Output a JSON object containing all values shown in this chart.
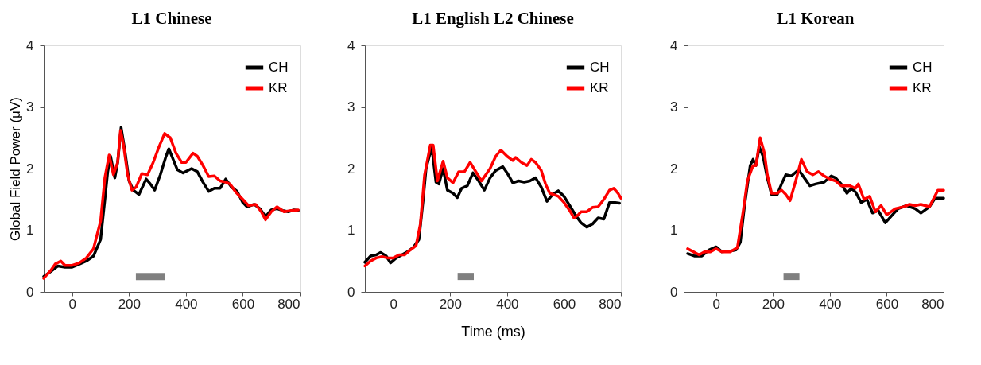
{
  "chart_data": [
    {
      "type": "line",
      "title": "L1 Chinese",
      "ylabel": "Global Field Power (μV)",
      "xlim": [
        -100,
        800
      ],
      "xticks": [
        0,
        200,
        400,
        600,
        800
      ],
      "ylim": [
        0,
        4
      ],
      "yticks": [
        0,
        1,
        2,
        3,
        4
      ],
      "grid": false,
      "legend": "top right",
      "tick_labels": true,
      "series": [
        {
          "type": "line",
          "color": "#808080",
          "x": [
            224,
            327
          ],
          "values": [
            0.25,
            0.25
          ]
        },
        {
          "name": "CH",
          "color": "#000000",
          "x": [
            -100,
            -75,
            -50,
            -25,
            0,
            25,
            50,
            75,
            100,
            115,
            125,
            135,
            150,
            160,
            172,
            185,
            200,
            215,
            235,
            260,
            275,
            290,
            310,
            330,
            340,
            355,
            370,
            390,
            420,
            440,
            460,
            480,
            500,
            520,
            540,
            560,
            580,
            600,
            615,
            640,
            660,
            680,
            700,
            720,
            740,
            760,
            780,
            795
          ],
          "values": [
            0.25,
            0.33,
            0.42,
            0.4,
            0.4,
            0.45,
            0.5,
            0.58,
            0.85,
            1.5,
            1.95,
            2.2,
            1.85,
            2.1,
            2.67,
            2.3,
            1.8,
            1.65,
            1.58,
            1.83,
            1.75,
            1.65,
            1.9,
            2.2,
            2.32,
            2.15,
            1.98,
            1.93,
            2.0,
            1.95,
            1.78,
            1.63,
            1.68,
            1.68,
            1.83,
            1.7,
            1.63,
            1.45,
            1.38,
            1.42,
            1.35,
            1.22,
            1.33,
            1.35,
            1.32,
            1.3,
            1.33,
            1.32
          ]
        },
        {
          "name": "KR",
          "color": "#ff0000",
          "x": [
            -100,
            -75,
            -60,
            -40,
            -25,
            0,
            25,
            50,
            75,
            100,
            115,
            130,
            145,
            160,
            170,
            180,
            195,
            210,
            225,
            245,
            265,
            285,
            305,
            325,
            345,
            365,
            385,
            400,
            425,
            440,
            460,
            480,
            500,
            520,
            540,
            555,
            575,
            600,
            620,
            645,
            665,
            680,
            700,
            720,
            745,
            770,
            795
          ],
          "values": [
            0.22,
            0.35,
            0.45,
            0.5,
            0.43,
            0.43,
            0.47,
            0.55,
            0.7,
            1.15,
            1.85,
            2.22,
            1.9,
            2.1,
            2.62,
            2.4,
            1.9,
            1.65,
            1.7,
            1.92,
            1.9,
            2.1,
            2.35,
            2.57,
            2.5,
            2.25,
            2.1,
            2.1,
            2.25,
            2.2,
            2.05,
            1.87,
            1.88,
            1.8,
            1.78,
            1.75,
            1.62,
            1.5,
            1.4,
            1.42,
            1.3,
            1.17,
            1.3,
            1.38,
            1.3,
            1.32,
            1.33
          ]
        }
      ]
    },
    {
      "type": "line",
      "title": "L1 English L2 Chinese",
      "xlabel": "Time (ms)",
      "xlim": [
        -100,
        800
      ],
      "xticks": [
        0,
        200,
        400,
        600,
        800
      ],
      "ylim": [
        0,
        4
      ],
      "yticks": [
        0,
        1,
        2,
        3,
        4
      ],
      "grid": false,
      "legend": "top right",
      "series": [
        {
          "type": "line",
          "color": "#808080",
          "x": [
            226,
            283
          ],
          "values": [
            0.25,
            0.25
          ]
        },
        {
          "name": "CH",
          "color": "#000000",
          "x": [
            -100,
            -80,
            -60,
            -45,
            -25,
            -10,
            10,
            30,
            50,
            70,
            90,
            105,
            115,
            135,
            150,
            160,
            175,
            190,
            210,
            225,
            240,
            260,
            280,
            300,
            320,
            340,
            360,
            385,
            400,
            420,
            440,
            460,
            480,
            500,
            520,
            540,
            560,
            580,
            600,
            620,
            640,
            660,
            680,
            700,
            720,
            740,
            760,
            780,
            795
          ],
          "values": [
            0.48,
            0.58,
            0.6,
            0.64,
            0.58,
            0.47,
            0.55,
            0.6,
            0.65,
            0.72,
            0.85,
            1.5,
            2.0,
            2.35,
            1.78,
            1.75,
            2.0,
            1.65,
            1.6,
            1.53,
            1.68,
            1.72,
            1.93,
            1.8,
            1.65,
            1.85,
            1.97,
            2.03,
            1.93,
            1.77,
            1.8,
            1.78,
            1.8,
            1.85,
            1.7,
            1.47,
            1.58,
            1.64,
            1.55,
            1.4,
            1.25,
            1.12,
            1.05,
            1.1,
            1.2,
            1.18,
            1.45,
            1.45,
            1.44
          ]
        },
        {
          "name": "KR",
          "color": "#ff0000",
          "x": [
            -100,
            -80,
            -60,
            -40,
            -20,
            0,
            20,
            40,
            60,
            80,
            95,
            110,
            130,
            140,
            155,
            175,
            190,
            210,
            230,
            250,
            270,
            290,
            310,
            340,
            360,
            378,
            400,
            420,
            430,
            450,
            470,
            485,
            500,
            520,
            535,
            550,
            580,
            600,
            620,
            635,
            650,
            660,
            680,
            700,
            720,
            740,
            760,
            775,
            790,
            800
          ],
          "values": [
            0.42,
            0.5,
            0.55,
            0.57,
            0.55,
            0.55,
            0.6,
            0.6,
            0.68,
            0.75,
            1.1,
            1.9,
            2.38,
            2.38,
            1.8,
            2.12,
            1.85,
            1.77,
            1.95,
            1.95,
            2.1,
            1.95,
            1.8,
            2.0,
            2.2,
            2.3,
            2.2,
            2.13,
            2.18,
            2.1,
            2.05,
            2.15,
            2.1,
            1.97,
            1.75,
            1.6,
            1.55,
            1.45,
            1.32,
            1.2,
            1.25,
            1.3,
            1.3,
            1.37,
            1.38,
            1.5,
            1.65,
            1.68,
            1.6,
            1.52
          ]
        }
      ]
    },
    {
      "type": "line",
      "title": "L1 Korean",
      "xlim": [
        -100,
        800
      ],
      "xticks": [
        0,
        200,
        400,
        600,
        800
      ],
      "ylim": [
        0,
        4
      ],
      "yticks": [
        0,
        1,
        2,
        3,
        4
      ],
      "grid": false,
      "legend": "top right",
      "series": [
        {
          "type": "line",
          "color": "#808080",
          "x": [
            237,
            293
          ],
          "values": [
            0.25,
            0.25
          ]
        },
        {
          "name": "CH",
          "color": "#000000",
          "x": [
            -100,
            -75,
            -50,
            -25,
            0,
            20,
            50,
            70,
            85,
            100,
            120,
            130,
            140,
            152,
            165,
            180,
            195,
            215,
            230,
            245,
            265,
            290,
            310,
            330,
            350,
            380,
            405,
            420,
            440,
            460,
            475,
            490,
            510,
            530,
            550,
            570,
            595,
            620,
            640,
            670,
            700,
            720,
            750,
            770,
            800
          ],
          "values": [
            0.62,
            0.58,
            0.58,
            0.68,
            0.73,
            0.65,
            0.66,
            0.68,
            0.8,
            1.4,
            2.05,
            2.15,
            2.05,
            2.35,
            2.2,
            1.85,
            1.58,
            1.58,
            1.75,
            1.9,
            1.88,
            1.98,
            1.85,
            1.72,
            1.75,
            1.78,
            1.88,
            1.85,
            1.75,
            1.6,
            1.68,
            1.62,
            1.45,
            1.5,
            1.28,
            1.32,
            1.12,
            1.25,
            1.35,
            1.4,
            1.35,
            1.28,
            1.38,
            1.52,
            1.52
          ]
        },
        {
          "name": "KR",
          "color": "#ff0000",
          "x": [
            -100,
            -80,
            -60,
            -40,
            -20,
            0,
            20,
            50,
            75,
            95,
            110,
            130,
            140,
            155,
            170,
            180,
            195,
            215,
            230,
            245,
            260,
            280,
            300,
            320,
            340,
            360,
            380,
            400,
            420,
            440,
            470,
            490,
            500,
            520,
            540,
            560,
            580,
            600,
            630,
            660,
            680,
            700,
            720,
            750,
            780,
            800
          ],
          "values": [
            0.7,
            0.65,
            0.6,
            0.65,
            0.65,
            0.7,
            0.65,
            0.65,
            0.72,
            1.3,
            1.8,
            2.05,
            2.05,
            2.5,
            2.25,
            1.9,
            1.6,
            1.6,
            1.65,
            1.58,
            1.48,
            1.8,
            2.15,
            1.95,
            1.9,
            1.95,
            1.88,
            1.83,
            1.8,
            1.72,
            1.72,
            1.68,
            1.75,
            1.5,
            1.55,
            1.3,
            1.4,
            1.25,
            1.35,
            1.38,
            1.42,
            1.4,
            1.42,
            1.38,
            1.65,
            1.65
          ]
        }
      ]
    }
  ]
}
